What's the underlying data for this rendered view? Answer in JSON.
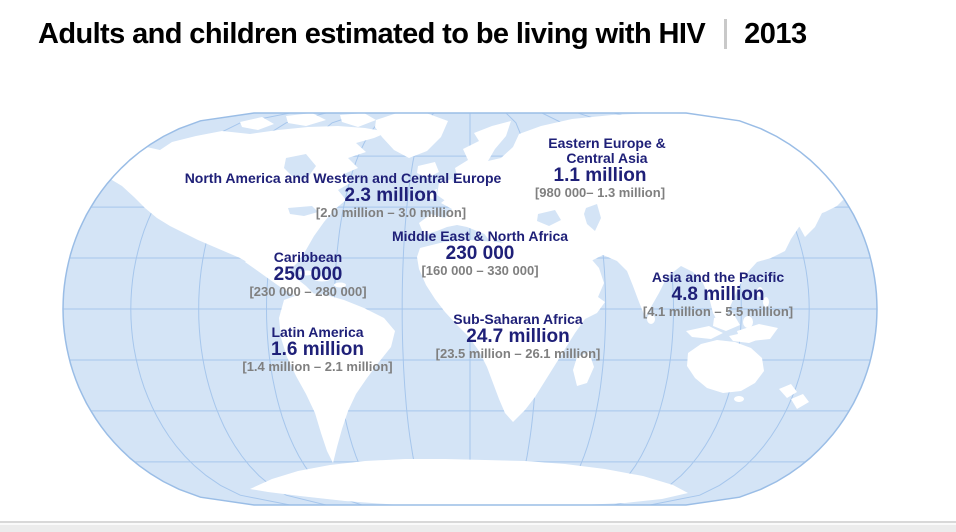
{
  "title": {
    "text": "Adults and children estimated to be living with HIV",
    "year": "2013"
  },
  "regions": [
    {
      "id": "north-america-western-central-europe",
      "name": "North America and Western and Central Europe",
      "value": "2.3 million",
      "range": "[2.0 million – 3.0 million]"
    },
    {
      "id": "eastern-europe-central-asia",
      "name": "Eastern Europe & Central Asia",
      "value": "1.1 million",
      "range": "[980 000– 1.3 million]"
    },
    {
      "id": "middle-east-north-africa",
      "name": "Middle East & North Africa",
      "value": "230 000",
      "range": "[160 000 – 330 000]"
    },
    {
      "id": "caribbean",
      "name": "Caribbean",
      "value": "250 000",
      "range": "[230 000 – 280 000]"
    },
    {
      "id": "asia-and-the-pacific",
      "name": "Asia and the Pacific",
      "value": "4.8 million",
      "range": "[4.1 million – 5.5 million]"
    },
    {
      "id": "latin-america",
      "name": "Latin America",
      "value": "1.6 million",
      "range": "[1.4 million – 2.1 million]"
    },
    {
      "id": "sub-saharan-africa",
      "name": "Sub-Saharan Africa",
      "value": "24.7 million",
      "range": "[23.5 million – 26.1 million]"
    }
  ],
  "colors": {
    "region_name_text": "#1f2078",
    "range_text": "#7f7f7f",
    "ocean": "#d4e4f6",
    "land": "#ffffff",
    "graticule": "#a6c6ec",
    "map_outline": "#9abde6",
    "title_text": "#000000",
    "title_separator": "#c9c9c9",
    "footer_bar": "#ececec"
  }
}
